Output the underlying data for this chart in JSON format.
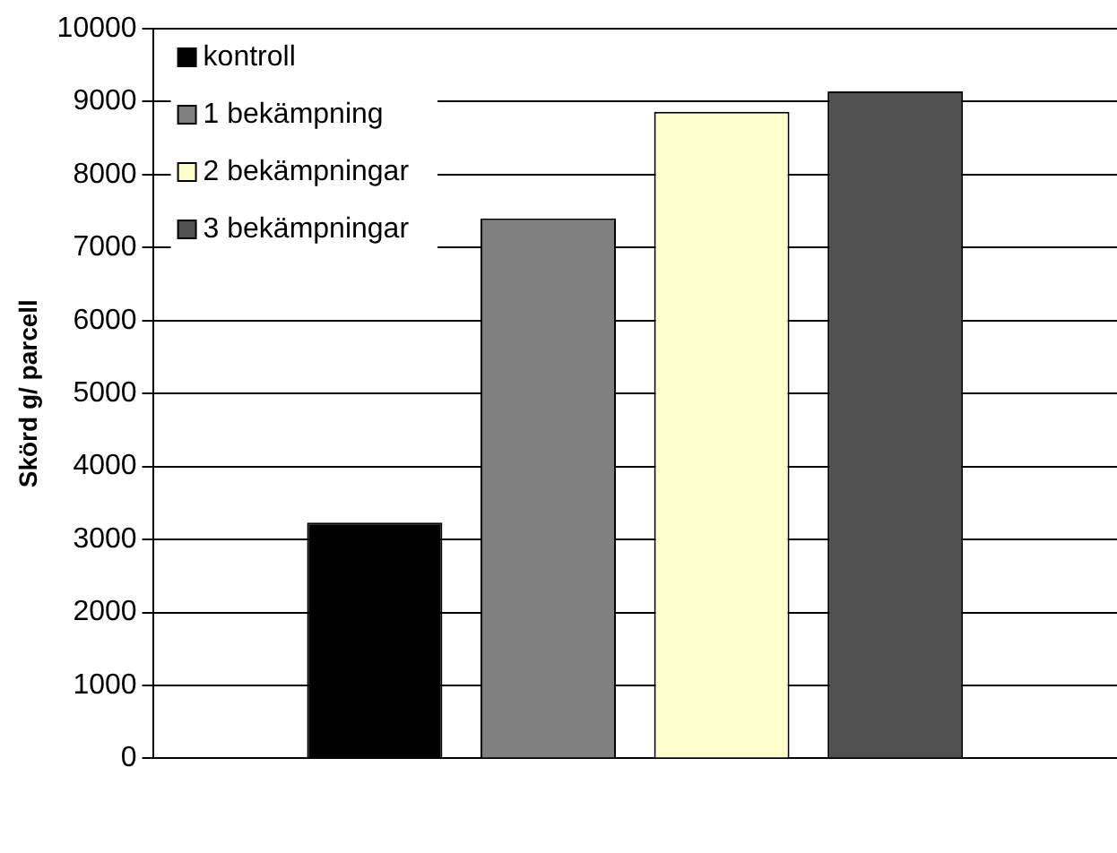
{
  "chart_data": {
    "type": "bar",
    "ylabel": "Skörd g/ parcell",
    "categories": [
      null
    ],
    "series": [
      {
        "name": "kontroll",
        "color": "#000000",
        "values": [
          3230
        ]
      },
      {
        "name": "1 bekämpning",
        "color": "#808080",
        "values": [
          7400
        ]
      },
      {
        "name": "2 bekämpningar",
        "color": "#ffffcc",
        "values": [
          8860
        ]
      },
      {
        "name": "3 bekämpningar",
        "color": "#505050",
        "values": [
          9140
        ]
      }
    ],
    "ylim": [
      0,
      10000
    ],
    "yticks": [
      0,
      1000,
      2000,
      3000,
      4000,
      5000,
      6000,
      7000,
      8000,
      9000,
      10000
    ],
    "grid": "y",
    "legend": "top left"
  }
}
